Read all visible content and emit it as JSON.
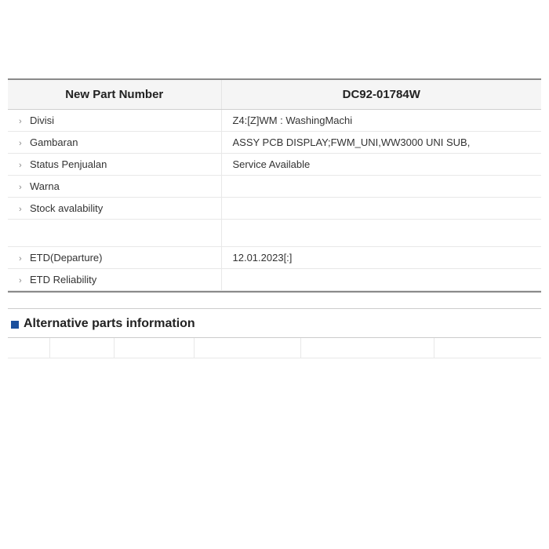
{
  "header": {
    "label_col": "New Part Number",
    "value_col": "DC92-01784W"
  },
  "rows": [
    {
      "label": "Divisi",
      "value": "Z4:[Z]WM : WashingMachi"
    },
    {
      "label": "Gambaran",
      "value": "ASSY PCB DISPLAY;FWM_UNI,WW3000 UNI SUB,"
    },
    {
      "label": "Status Penjualan",
      "value": "Service Available"
    },
    {
      "label": "Warna",
      "value": ""
    },
    {
      "label": "Stock avalability",
      "value": ""
    }
  ],
  "rows2": [
    {
      "label": "ETD(Departure)",
      "value": "12.01.2023[:]"
    },
    {
      "label": "ETD Reliability",
      "value": ""
    }
  ],
  "section": {
    "title": "Alternative parts information"
  }
}
